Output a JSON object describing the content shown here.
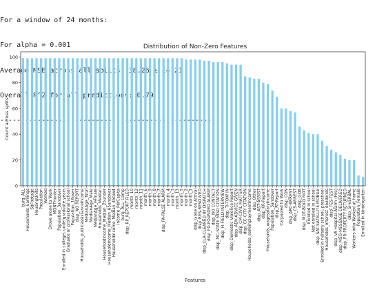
{
  "console": {
    "lines": [
      "For a window of 24 months:",
      "For alpha = 0.001",
      "Average MSE across all splits: 38.26 ± 14.21",
      "Overall R^2 for all predictions: 0.79",
      "------------------------------------------------------"
    ]
  },
  "colors": {
    "bar": "#87ceeb",
    "axis": "#000000",
    "text": "#222222"
  },
  "chart_data": {
    "type": "bar",
    "title": "Distribution of Non-Zero Features",
    "xlabel": "Features",
    "ylabel": "Count across splits",
    "ylim": [
      0,
      104
    ],
    "yticks": [
      0,
      20,
      40,
      60,
      80,
      100
    ],
    "grid": false,
    "legend": "none",
    "categories": [
      "burg_ALL",
      "Households_Earnings",
      "SqFootage",
      "HousingUnits",
      "Population",
      "Worked",
      "Drove alone to Work",
      "MONTHorder",
      "Population_3andover",
      "Enrolled in college, undergraduate years",
      "Graduate or professional school",
      "Population_16over",
      "disp_NO REPORT",
      "Households_publicassistanceincome",
      "MedianAge_Total",
      "MedianAge_Male",
      "MedianAge_Female",
      "Households_Median",
      "Householdincome_Median_25under",
      "Householdincome_Median_65andover",
      "Householdincome_Median_45to64",
      "Income_PerCapita",
      "burg_ALL_Comp",
      "disp_RP_REPORT FILED",
      "month_10",
      "month_12",
      "month_11",
      "month_6",
      "month_9",
      "month_8",
      "month_7",
      "disp_FA-FALSE ALARM",
      "month_4",
      "month_3",
      "month_13",
      "month_5",
      "month_2",
      "month_1",
      "disp_Gone on Arrival",
      "disp_RES-RESOLVED",
      "disp_CLR-CLEARED BY DISPATCH",
      "disp_FD-FOUNDED ALARM",
      "disp_NO CONTACT",
      "disp_MC-STATE MISD CITATION",
      "disp_FI-FIELD INTERVIEW",
      "disp_TI-TOW IN",
      "disp_Domestic Violence Report",
      "disp_ADV-ADVICE GIVEN",
      "disp_CM-CIVIL MATTER",
      "disp_CC-CITY CITATION",
      "Households_selfemploymentincome",
      "disp_Other",
      "disp_AST-ASSIST",
      "disp_KR-Report",
      "Households_wagesalaryincome",
      "Population_5andover",
      "disp_RT-Report",
      "Carpooled to Work",
      "disp_CON",
      "disp_ARC-ARREST",
      "disp_CS-ARREST",
      "disp_GOA",
      "disp_MOT-BOLO MOT",
      "Enrolled in school",
      "Not enrolled in school",
      "disp_SAT-SATELLITE MOBILE",
      "Enrolled in nursery school, preschool",
      "Households_interest_dividends",
      "disp_TES-TEST",
      "disp_VA Hospital Alarm (Fire)",
      "disp_MSG-MESSAGE DELIVERED",
      "disp_PR-PROPERTY RETURNED",
      "disp_SI-VERBAL",
      "Workers who Worked at home",
      "Population_Female",
      "Enrolled in kindergarten"
    ],
    "values": [
      99,
      99,
      99,
      99,
      99,
      99,
      99,
      99,
      99,
      99,
      99,
      99,
      99,
      99,
      99,
      99,
      99,
      99,
      99,
      99,
      99,
      99,
      99,
      99,
      99,
      99,
      99,
      99,
      99,
      99,
      99,
      99,
      99,
      99,
      99,
      99,
      98,
      98,
      98,
      98,
      97,
      97,
      96,
      96,
      96,
      95,
      94,
      94,
      94,
      85,
      84,
      83,
      83,
      80,
      79,
      74,
      69,
      60,
      60,
      58,
      57,
      46,
      43,
      41,
      40,
      40,
      35,
      31,
      28,
      26,
      24,
      21,
      20,
      20,
      8,
      7
    ]
  }
}
